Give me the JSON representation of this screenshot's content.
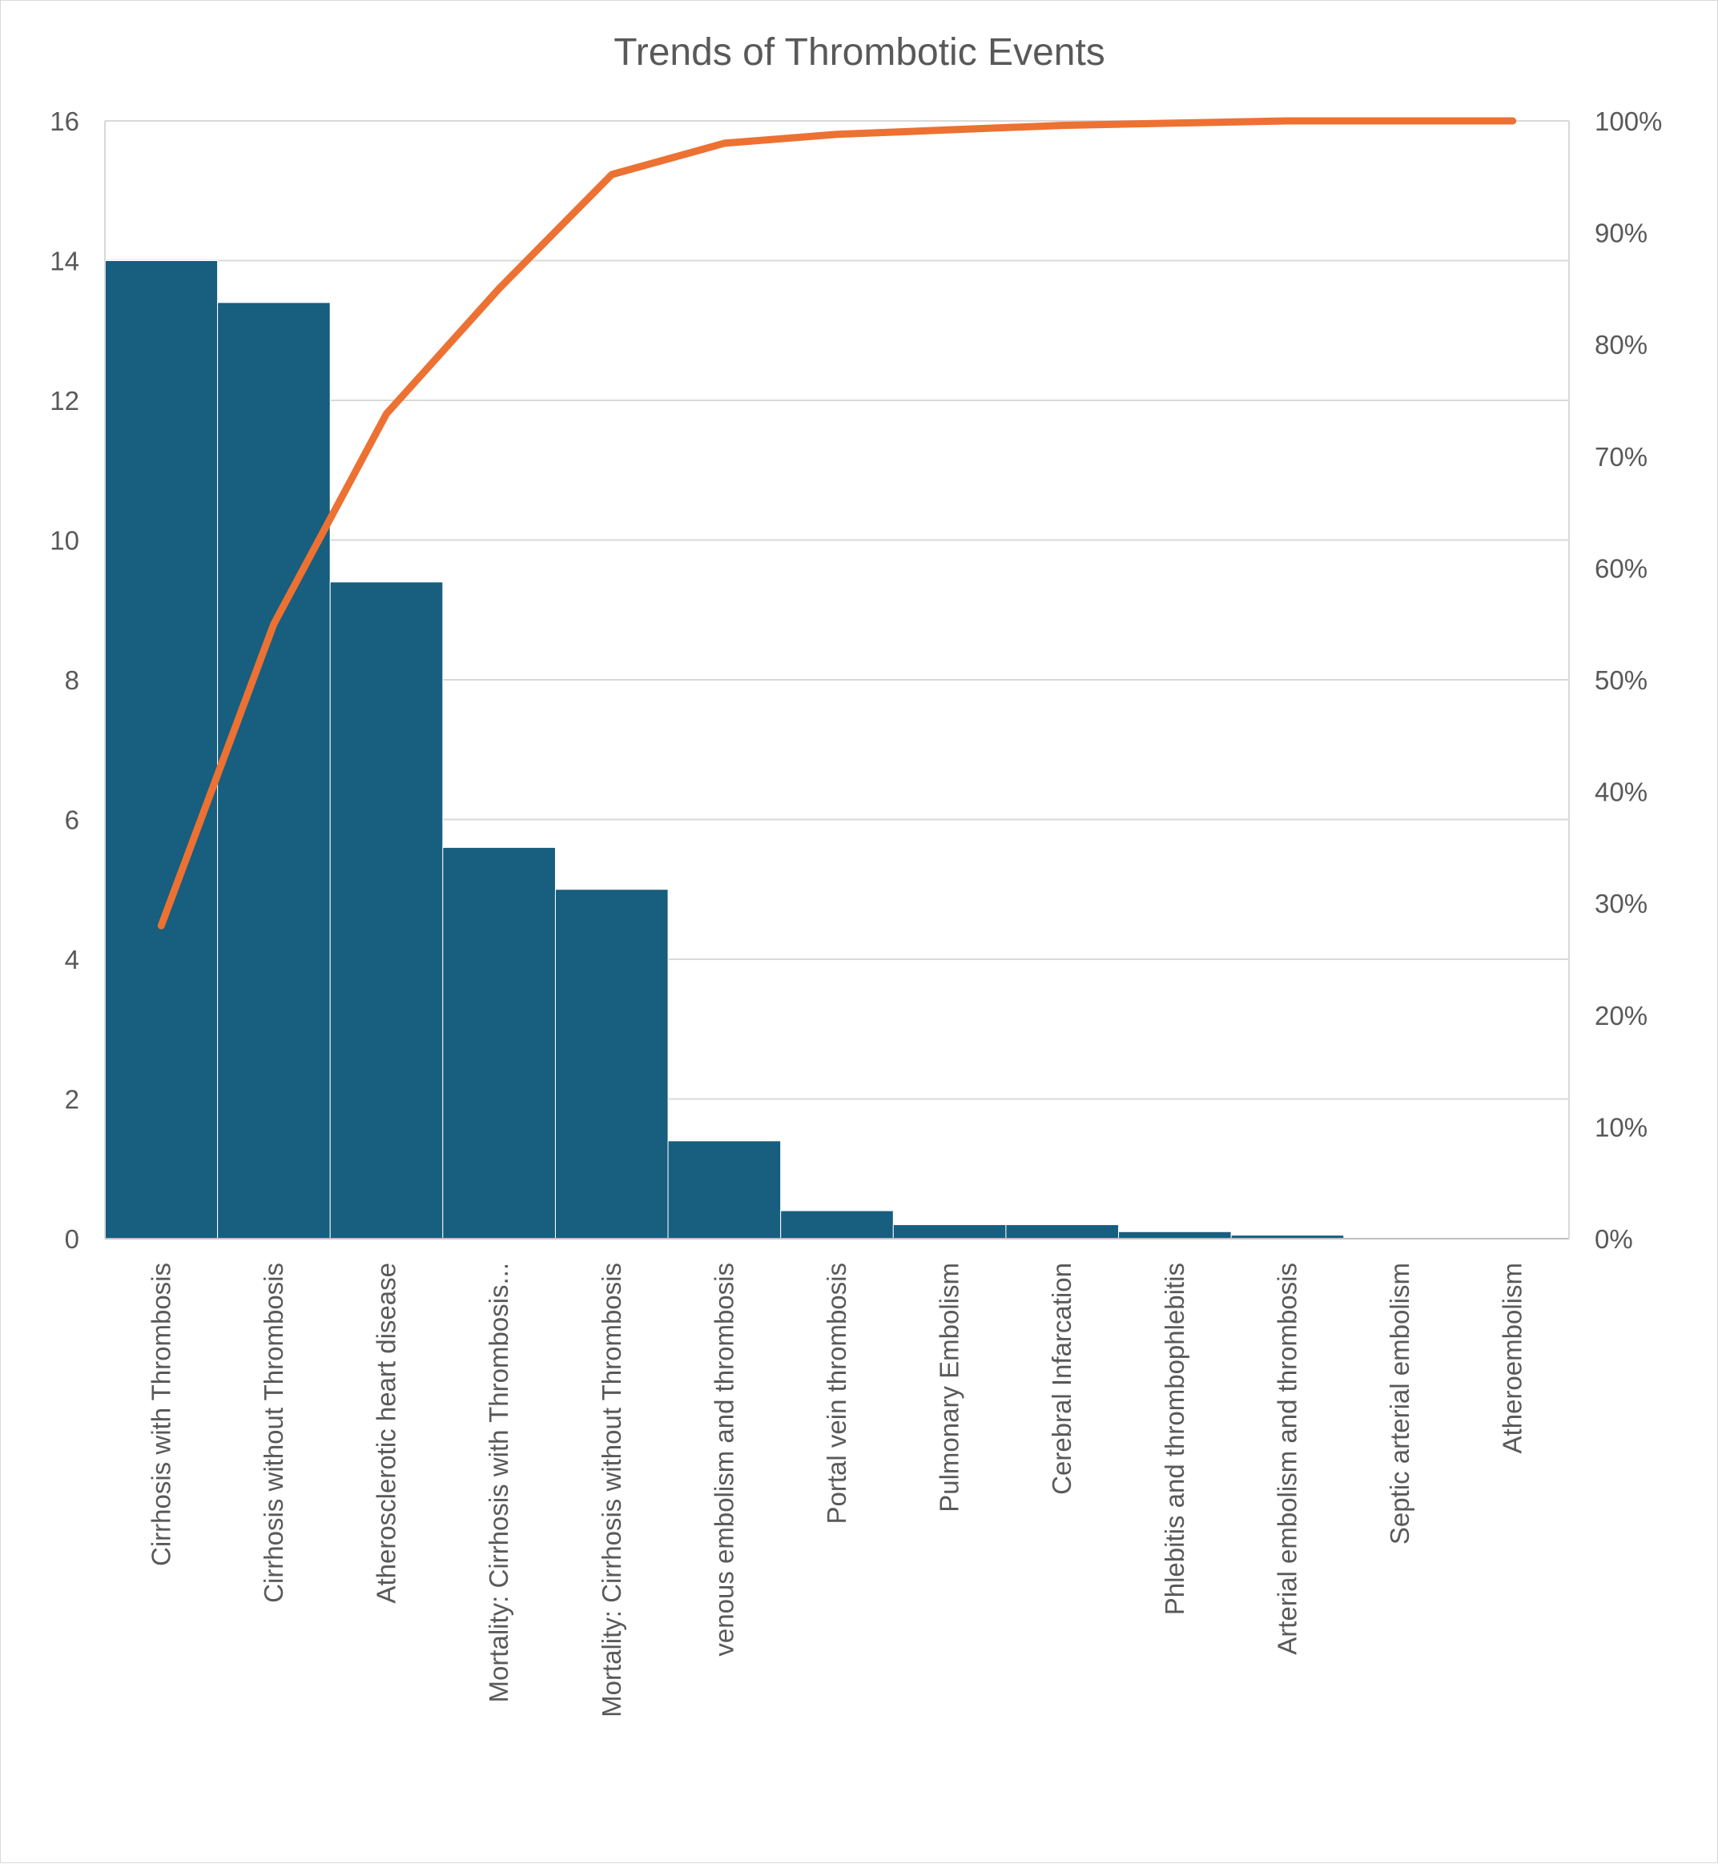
{
  "chart_data": {
    "type": "bar",
    "title": "Trends of Thrombotic Events",
    "categories": [
      "Cirrhosis with Thrombosis",
      "Cirrhosis without Thrombosis",
      "Atherosclerotic heart disease",
      "Mortality: Cirrhosis with Thrombosis...",
      "Mortality: Cirrhosis without Thrombosis",
      "venous embolism and thrombosis",
      "Portal vein thrombosis",
      "Pulmonary Embolism",
      "Cerebral Infarcation",
      "Phlebitis and thrombophlebitis",
      "Arterial embolism and thrombosis",
      "Septic arterial embolism",
      "Atheroembolism"
    ],
    "series": [
      {
        "type": "bar",
        "axis": "left",
        "color": "#175e7f",
        "values": [
          14.0,
          13.4,
          9.4,
          5.6,
          5.0,
          1.4,
          0.4,
          0.2,
          0.2,
          0.1,
          0.05,
          0.0,
          0.0
        ]
      },
      {
        "type": "line",
        "axis": "right",
        "color": "#ed7132",
        "values": [
          28.0,
          55.0,
          73.8,
          85.0,
          95.2,
          98.0,
          98.8,
          99.2,
          99.6,
          99.8,
          100.0,
          100.0,
          100.0
        ]
      }
    ],
    "y_left": {
      "ylim": [
        0,
        16
      ],
      "ticks": [
        "0",
        "2",
        "4",
        "6",
        "8",
        "10",
        "12",
        "14",
        "16"
      ]
    },
    "y_right": {
      "ylim": [
        0,
        100
      ],
      "ticks": [
        "0%",
        "10%",
        "20%",
        "30%",
        "40%",
        "50%",
        "60%",
        "70%",
        "80%",
        "90%",
        "100%"
      ]
    },
    "grid": true,
    "legend": "none"
  }
}
